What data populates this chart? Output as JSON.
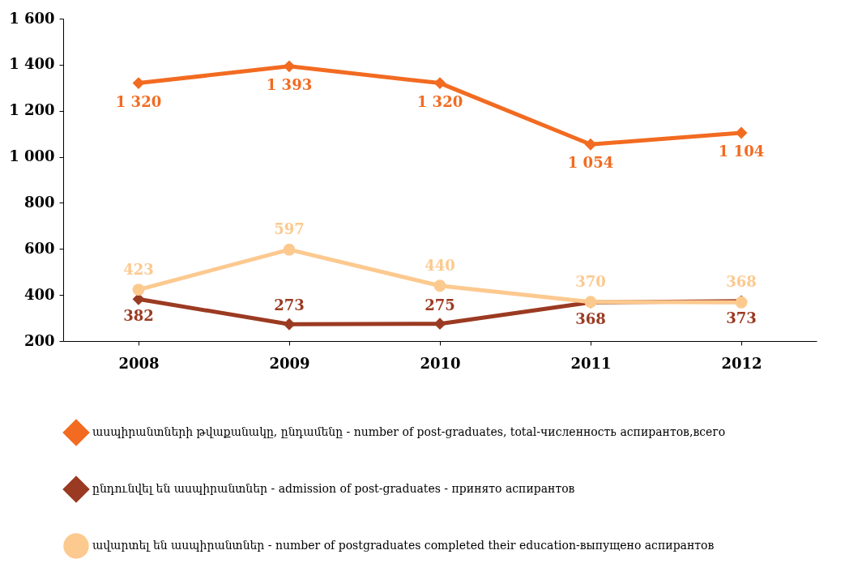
{
  "chart_data": {
    "type": "line",
    "categories": [
      "2008",
      "2009",
      "2010",
      "2011",
      "2012"
    ],
    "series": [
      {
        "name": "ասպիրանտների թվաքանակը, ընդամենը  - number of post-graduates, total-численность аспирантов,всего",
        "color": "#f26b21",
        "marker": "diamond",
        "values": [
          1320,
          1393,
          1320,
          1054,
          1104
        ],
        "value_labels": [
          "1 320",
          "1 393",
          "1 320",
          "1 054",
          "1 104"
        ]
      },
      {
        "name": "ընդունվել են ասպիրանտներ - admission of  post-graduates -   принято аспирантов",
        "color": "#9b3a22",
        "marker": "diamond",
        "values": [
          382,
          273,
          275,
          368,
          373
        ],
        "value_labels": [
          "382",
          "273",
          "275",
          "368",
          "373"
        ]
      },
      {
        "name": "ավարտել են ասպիրանտներ - number of postgraduates completed their education-выпущено аспирантов",
        "color": "#fcc98f",
        "marker": "circle",
        "values": [
          423,
          597,
          440,
          370,
          368
        ],
        "value_labels": [
          "423",
          "597",
          "440",
          "370",
          "368"
        ]
      }
    ],
    "ylim": [
      200,
      1600
    ],
    "yticks": [
      {
        "value": 200,
        "label": "200"
      },
      {
        "value": 400,
        "label": "400"
      },
      {
        "value": 600,
        "label": "600"
      },
      {
        "value": 800,
        "label": "800"
      },
      {
        "value": 1000,
        "label": "1 000"
      },
      {
        "value": 1200,
        "label": "1 200"
      },
      {
        "value": 1400,
        "label": "1 400"
      },
      {
        "value": 1600,
        "label": "1 600"
      }
    ],
    "grid": false,
    "legend": "bottom",
    "line_style": "solid"
  }
}
